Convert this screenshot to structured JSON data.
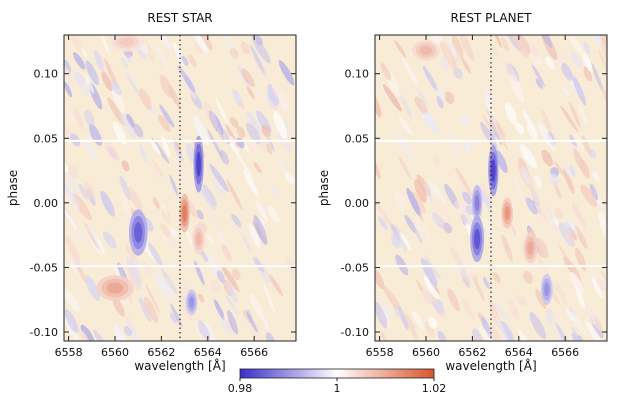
{
  "chart_data": [
    {
      "type": "heatmap",
      "title": "REST STAR",
      "xlabel": "wavelength [Å]",
      "ylabel": "phase",
      "xlim": [
        6557.8,
        6567.8
      ],
      "ylim": [
        -0.107,
        0.13
      ],
      "xticks": [
        "6558",
        "6560",
        "6562",
        "6564",
        "6566"
      ],
      "xtick_values": [
        6558,
        6560,
        6562,
        6564,
        6566
      ],
      "yticks": [
        "0.10",
        "0.05",
        "0.00",
        "-0.05",
        "-0.10"
      ],
      "ytick_values": [
        0.1,
        0.05,
        0.0,
        -0.05,
        -0.1
      ],
      "reference_line_wavelength": 6562.8,
      "gaps_at_phase": [
        0.048,
        -0.049
      ],
      "features": [
        {
          "kind": "absorption",
          "wavelength": 6563.6,
          "phase": 0.03,
          "width": 0.45,
          "height": 0.022,
          "value": 0.982
        },
        {
          "kind": "emission",
          "wavelength": 6563.0,
          "phase": -0.008,
          "width": 0.45,
          "height": 0.015,
          "value": 1.015
        },
        {
          "kind": "absorption",
          "wavelength": 6561.0,
          "phase": -0.023,
          "width": 0.8,
          "height": 0.018,
          "value": 0.985
        },
        {
          "kind": "emission",
          "wavelength": 6563.6,
          "phase": -0.028,
          "width": 0.55,
          "height": 0.012,
          "value": 1.008
        },
        {
          "kind": "emission",
          "wavelength": 6560.0,
          "phase": -0.066,
          "width": 1.6,
          "height": 0.01,
          "value": 1.01
        },
        {
          "kind": "absorption",
          "wavelength": 6563.3,
          "phase": -0.077,
          "width": 0.5,
          "height": 0.01,
          "value": 0.99
        },
        {
          "kind": "emission",
          "wavelength": 6560.5,
          "phase": 0.125,
          "width": 1.5,
          "height": 0.008,
          "value": 1.006
        }
      ]
    },
    {
      "type": "heatmap",
      "title": "REST PLANET",
      "xlabel": "wavelength [Å]",
      "ylabel": "phase",
      "xlim": [
        6557.8,
        6567.8
      ],
      "ylim": [
        -0.107,
        0.13
      ],
      "xticks": [
        "6558",
        "6560",
        "6562",
        "6564",
        "6566"
      ],
      "xtick_values": [
        6558,
        6560,
        6562,
        6564,
        6566
      ],
      "yticks": [
        "0.10",
        "0.05",
        "0.00",
        "-0.05",
        "-0.10"
      ],
      "ytick_values": [
        0.1,
        0.05,
        0.0,
        -0.05,
        -0.1
      ],
      "reference_line_wavelength": 6562.8,
      "gaps_at_phase": [
        0.048,
        -0.049
      ],
      "features": [
        {
          "kind": "absorption",
          "wavelength": 6562.9,
          "phase": 0.025,
          "width": 0.45,
          "height": 0.02,
          "value": 0.982
        },
        {
          "kind": "absorption",
          "wavelength": 6562.2,
          "phase": 0.0,
          "width": 0.45,
          "height": 0.014,
          "value": 0.988
        },
        {
          "kind": "absorption",
          "wavelength": 6562.2,
          "phase": -0.028,
          "width": 0.6,
          "height": 0.018,
          "value": 0.984
        },
        {
          "kind": "emission",
          "wavelength": 6563.5,
          "phase": -0.008,
          "width": 0.5,
          "height": 0.012,
          "value": 1.012
        },
        {
          "kind": "emission",
          "wavelength": 6564.5,
          "phase": -0.035,
          "width": 0.6,
          "height": 0.012,
          "value": 1.01
        },
        {
          "kind": "absorption",
          "wavelength": 6565.2,
          "phase": -0.067,
          "width": 0.5,
          "height": 0.012,
          "value": 0.99
        },
        {
          "kind": "emission",
          "wavelength": 6560.0,
          "phase": 0.118,
          "width": 1.2,
          "height": 0.008,
          "value": 1.008
        }
      ]
    }
  ],
  "colorbar": {
    "min": 0.98,
    "max": 1.02,
    "ticks": [
      "0.98",
      "1",
      "1.02"
    ],
    "tick_values": [
      0.98,
      1.0,
      1.02
    ],
    "colors": [
      "#3b2dc9",
      "#ffffff",
      "#d9542b"
    ]
  }
}
